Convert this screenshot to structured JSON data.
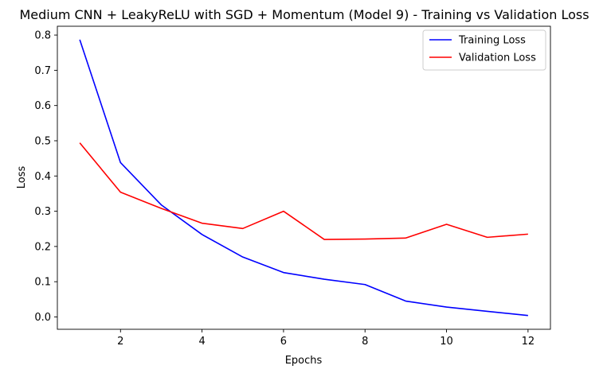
{
  "chart_data": {
    "type": "line",
    "title": "Medium CNN + LeakyReLU with SGD + Momentum (Model 9) - Training vs Validation Loss",
    "xlabel": "Epochs",
    "ylabel": "Loss",
    "x": [
      1,
      2,
      3,
      4,
      5,
      6,
      7,
      8,
      9,
      10,
      11,
      12
    ],
    "xlim": [
      0.45,
      12.55
    ],
    "ylim": [
      -0.035,
      0.825
    ],
    "xticks": [
      2,
      4,
      6,
      8,
      10,
      12
    ],
    "yticks": [
      0.0,
      0.1,
      0.2,
      0.3,
      0.4,
      0.5,
      0.6,
      0.7,
      0.8
    ],
    "xtick_labels": [
      "2",
      "4",
      "6",
      "8",
      "10",
      "12"
    ],
    "ytick_labels": [
      "0.0",
      "0.1",
      "0.2",
      "0.3",
      "0.4",
      "0.5",
      "0.6",
      "0.7",
      "0.8"
    ],
    "grid": false,
    "legend_position": "top-right",
    "series": [
      {
        "name": "Training Loss",
        "color": "#0000ff",
        "values": [
          0.787,
          0.438,
          0.318,
          0.234,
          0.17,
          0.126,
          0.107,
          0.092,
          0.045,
          0.028,
          0.016,
          0.004
        ]
      },
      {
        "name": "Validation Loss",
        "color": "#ff0000",
        "values": [
          0.494,
          0.354,
          0.308,
          0.266,
          0.251,
          0.3,
          0.22,
          0.221,
          0.224,
          0.263,
          0.226,
          0.235
        ]
      }
    ]
  }
}
